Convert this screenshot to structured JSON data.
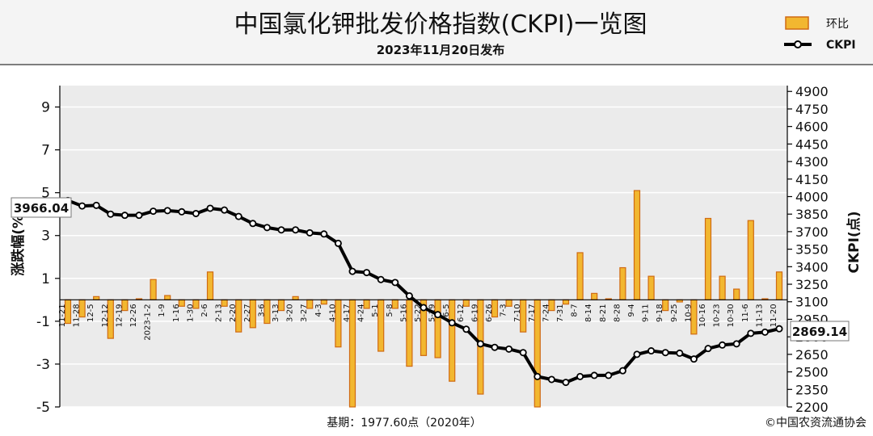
{
  "header": {
    "title": "中国氯化钾批发价格指数(CKPI)一览图",
    "subtitle": "2023年11月20日发布"
  },
  "legend": {
    "bar_label": "环比",
    "line_label": "CKPI"
  },
  "footer": {
    "base": "基期：1977.60点（2020年）",
    "copyright": "©中国农资流通协会"
  },
  "callouts": {
    "start": "3966.04",
    "end": "2869.14"
  },
  "colors": {
    "bar_fill": "#f2b730",
    "bar_stroke": "#d06a12",
    "line": "#000000",
    "plot_bg": "#ebebeb"
  },
  "chart_data": {
    "type": "bar+line",
    "title": "中国氯化钾批发价格指数(CKPI)一览图",
    "left_axis": {
      "label": "涨跌幅(%)",
      "min": -5,
      "max": 10,
      "ticks": [
        9,
        7,
        5,
        3,
        1,
        -1,
        -3,
        -5
      ]
    },
    "right_axis": {
      "label": "CKPI(点)",
      "min": 2200,
      "max": 4950,
      "ticks": [
        4900,
        4750,
        4600,
        4450,
        4300,
        4150,
        4000,
        3850,
        3700,
        3550,
        3400,
        3250,
        3100,
        2950,
        2800,
        2650,
        2500,
        2350,
        2200
      ]
    },
    "categories": [
      "11-21",
      "11-28",
      "12-5",
      "12-12",
      "12-19",
      "12-26",
      "2023-1-2",
      "1-9",
      "1-16",
      "1-30",
      "2-6",
      "2-13",
      "2-20",
      "2-27",
      "3-6",
      "3-13",
      "3-20",
      "3-27",
      "4-3",
      "4-10",
      "4-17",
      "4-24",
      "5-1",
      "5-8",
      "5-16",
      "5-22",
      "5-29",
      "6-5",
      "6-12",
      "6-19",
      "6-26",
      "7-3",
      "7-10",
      "7-17",
      "7-24",
      "7-31",
      "8-7",
      "8-14",
      "8-21",
      "8-28",
      "9-4",
      "9-11",
      "9-18",
      "9-25",
      "10-9",
      "10-16",
      "10-23",
      "10-30",
      "11-6",
      "11-13",
      "11-20"
    ],
    "series": [
      {
        "name": "环比",
        "type": "bar",
        "axis": "left",
        "values": [
          -1.1,
          -0.8,
          0.15,
          -1.8,
          -0.5,
          0.05,
          0.95,
          0.2,
          -0.3,
          -0.4,
          1.3,
          -0.3,
          -1.5,
          -1.3,
          -1.1,
          -0.5,
          0.15,
          -0.4,
          -0.2,
          -2.2,
          -5.0,
          -0.4,
          -2.4,
          -0.4,
          -3.1,
          -2.6,
          -2.7,
          -3.8,
          -0.3,
          -4.4,
          -0.8,
          -0.3,
          -1.5,
          -5.0,
          -0.5,
          -0.2,
          2.2,
          0.3,
          0.05,
          1.5,
          5.1,
          1.1,
          -0.5,
          -0.1,
          -1.6,
          3.8,
          1.1,
          0.5,
          3.7,
          0.05,
          1.3
        ]
      },
      {
        "name": "CKPI",
        "type": "line",
        "axis": "right",
        "values": [
          3966.04,
          3920,
          3925,
          3850,
          3840,
          3840,
          3875,
          3880,
          3870,
          3855,
          3900,
          3885,
          3830,
          3770,
          3735,
          3715,
          3715,
          3690,
          3680,
          3600,
          3360,
          3350,
          3290,
          3265,
          3150,
          3050,
          2990,
          2920,
          2865,
          2740,
          2710,
          2695,
          2665,
          2460,
          2435,
          2410,
          2460,
          2470,
          2470,
          2510,
          2650,
          2680,
          2665,
          2660,
          2610,
          2700,
          2730,
          2740,
          2830,
          2840,
          2869.14
        ]
      }
    ]
  }
}
